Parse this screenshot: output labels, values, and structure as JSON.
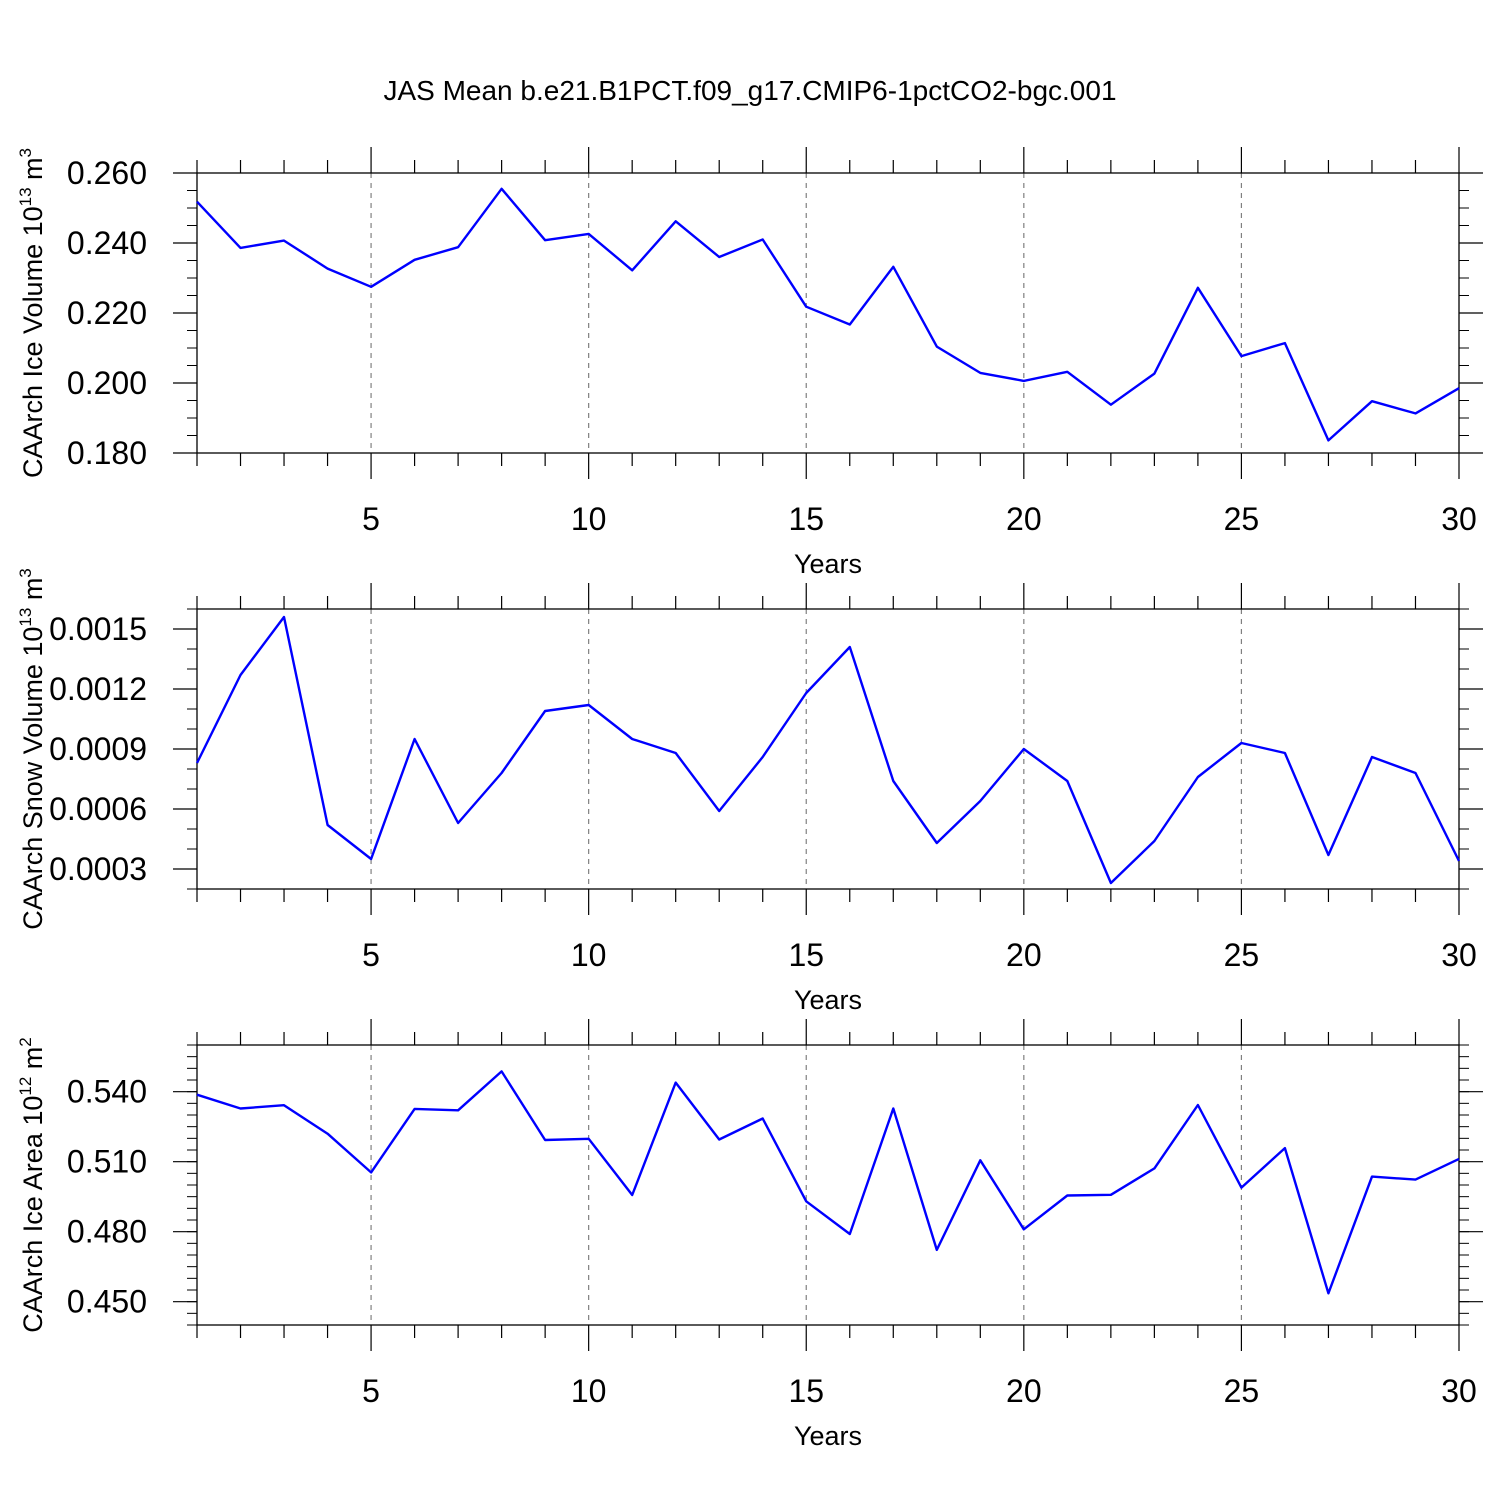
{
  "title": "JAS Mean b.e21.B1PCT.f09_g17.CMIP6-1pctCO2-bgc.001",
  "colors": {
    "line": "#0000ff",
    "axis": "#000000",
    "grid": "#808080",
    "background": "#ffffff"
  },
  "chart_data": [
    {
      "type": "line",
      "ylabel": "CAArch Ice Volume",
      "ylabel_unit_base": "10",
      "ylabel_unit_exp": "13",
      "ylabel_unit_tail": " m",
      "ylabel_unit_tail_exp": "3",
      "xlabel": "Years",
      "xlim": [
        1,
        30
      ],
      "ylim": [
        0.18,
        0.26
      ],
      "x_ticks": [
        5,
        10,
        15,
        20,
        25,
        30
      ],
      "x_tick_labels": [
        "5",
        "10",
        "15",
        "20",
        "25",
        "30"
      ],
      "y_ticks": [
        0.18,
        0.2,
        0.22,
        0.24,
        0.26
      ],
      "y_tick_labels": [
        "0.180",
        "0.200",
        "0.220",
        "0.240",
        "0.260"
      ],
      "y_minor_step": 0.005,
      "grid": "vertical dashed at major x ticks",
      "x": [
        1,
        2,
        3,
        4,
        5,
        6,
        7,
        8,
        9,
        10,
        11,
        12,
        13,
        14,
        15,
        16,
        17,
        18,
        19,
        20,
        21,
        22,
        23,
        24,
        25,
        26,
        27,
        28,
        29,
        30
      ],
      "series": [
        {
          "values": [
            0.2518,
            0.2386,
            0.2407,
            0.2327,
            0.2275,
            0.2352,
            0.2388,
            0.2555,
            0.2408,
            0.2426,
            0.2322,
            0.2462,
            0.236,
            0.241,
            0.2218,
            0.2167,
            0.2332,
            0.2104,
            0.2029,
            0.2006,
            0.2032,
            0.1938,
            0.2027,
            0.2272,
            0.2077,
            0.2114,
            0.1836,
            0.1948,
            0.1913,
            0.1985
          ]
        }
      ]
    },
    {
      "type": "line",
      "ylabel": "CAArch Snow Volume",
      "ylabel_unit_base": "10",
      "ylabel_unit_exp": "13",
      "ylabel_unit_tail": " m",
      "ylabel_unit_tail_exp": "3",
      "xlabel": "Years",
      "xlim": [
        1,
        30
      ],
      "ylim": [
        0.0002,
        0.0016
      ],
      "x_ticks": [
        5,
        10,
        15,
        20,
        25,
        30
      ],
      "x_tick_labels": [
        "5",
        "10",
        "15",
        "20",
        "25",
        "30"
      ],
      "y_ticks": [
        0.0003,
        0.0006,
        0.0009,
        0.0012,
        0.0015
      ],
      "y_tick_labels": [
        "0.0003",
        "0.0006",
        "0.0009",
        "0.0012",
        "0.0015"
      ],
      "y_minor_step": 0.0001,
      "grid": "vertical dashed at major x ticks",
      "x": [
        1,
        2,
        3,
        4,
        5,
        6,
        7,
        8,
        9,
        10,
        11,
        12,
        13,
        14,
        15,
        16,
        17,
        18,
        19,
        20,
        21,
        22,
        23,
        24,
        25,
        26,
        27,
        28,
        29,
        30
      ],
      "series": [
        {
          "values": [
            0.00083,
            0.00127,
            0.00156,
            0.00052,
            0.00035,
            0.00095,
            0.00053,
            0.00078,
            0.00109,
            0.00112,
            0.00095,
            0.00088,
            0.00059,
            0.00086,
            0.00118,
            0.00141,
            0.00074,
            0.00043,
            0.00064,
            0.0009,
            0.00074,
            0.00023,
            0.00044,
            0.00076,
            0.00093,
            0.00088,
            0.00037,
            0.00086,
            0.00078,
            0.00034
          ]
        }
      ]
    },
    {
      "type": "line",
      "ylabel": "CAArch Ice Area",
      "ylabel_unit_base": "10",
      "ylabel_unit_exp": "12",
      "ylabel_unit_tail": " m",
      "ylabel_unit_tail_exp": "2",
      "xlabel": "Years",
      "xlim": [
        1,
        30
      ],
      "ylim": [
        0.44,
        0.56
      ],
      "x_ticks": [
        5,
        10,
        15,
        20,
        25,
        30
      ],
      "x_tick_labels": [
        "5",
        "10",
        "15",
        "20",
        "25",
        "30"
      ],
      "y_ticks": [
        0.45,
        0.48,
        0.51,
        0.54
      ],
      "y_tick_labels": [
        "0.450",
        "0.480",
        "0.510",
        "0.540"
      ],
      "y_minor_step": 0.005,
      "grid": "vertical dashed at major x ticks",
      "x": [
        1,
        2,
        3,
        4,
        5,
        6,
        7,
        8,
        9,
        10,
        11,
        12,
        13,
        14,
        15,
        16,
        17,
        18,
        19,
        20,
        21,
        22,
        23,
        24,
        25,
        26,
        27,
        28,
        29,
        30
      ],
      "series": [
        {
          "values": [
            0.5387,
            0.5328,
            0.5342,
            0.522,
            0.5054,
            0.5326,
            0.532,
            0.5487,
            0.5193,
            0.5198,
            0.4957,
            0.5439,
            0.5195,
            0.5285,
            0.493,
            0.479,
            0.5328,
            0.4722,
            0.5106,
            0.481,
            0.4955,
            0.4958,
            0.5071,
            0.5343,
            0.4989,
            0.5158,
            0.4536,
            0.5036,
            0.5023,
            0.5112
          ]
        }
      ]
    }
  ]
}
